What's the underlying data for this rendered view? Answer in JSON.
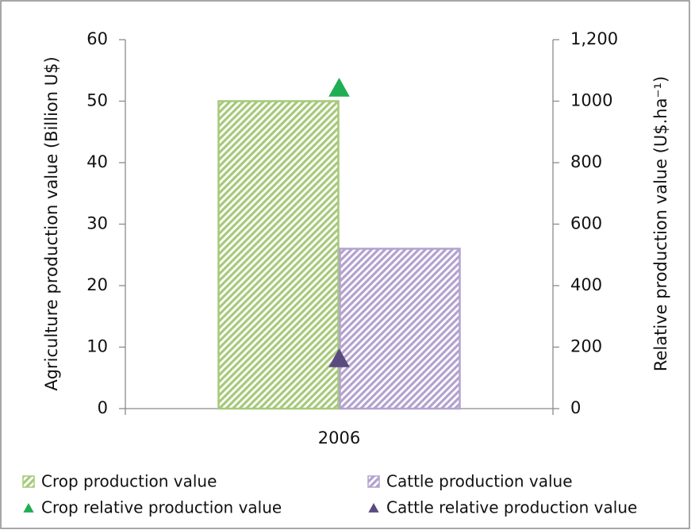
{
  "chart_data": {
    "type": "bar",
    "categories": [
      "2006"
    ],
    "y_label": "Agriculture production value  (Billion U$)",
    "y2_label": "Relative production value (U$.ha⁻¹)",
    "series": [
      {
        "name": "Crop production value",
        "type": "bar",
        "color": "#a6c97a",
        "values": [
          50
        ]
      },
      {
        "name": "Cattle production value",
        "type": "bar",
        "color": "#b3a2cf",
        "values": [
          26
        ]
      },
      {
        "name": "Crop relative production value",
        "type": "scatter",
        "axis": "y2",
        "color": "#1fae52",
        "values": [
          1040
        ]
      },
      {
        "name": "Cattle relative production value",
        "type": "scatter",
        "axis": "y2",
        "color": "#5b4a7f",
        "values": [
          160
        ]
      }
    ],
    "ylim": [
      0,
      60
    ],
    "yticks": [
      0,
      10,
      20,
      30,
      40,
      50,
      60
    ],
    "y2lim": [
      0,
      1200
    ],
    "y2ticks": [
      0,
      200,
      400,
      600,
      800,
      1000,
      {
        "value": 1200,
        "label": "1,200"
      }
    ],
    "legend": "bottom"
  }
}
